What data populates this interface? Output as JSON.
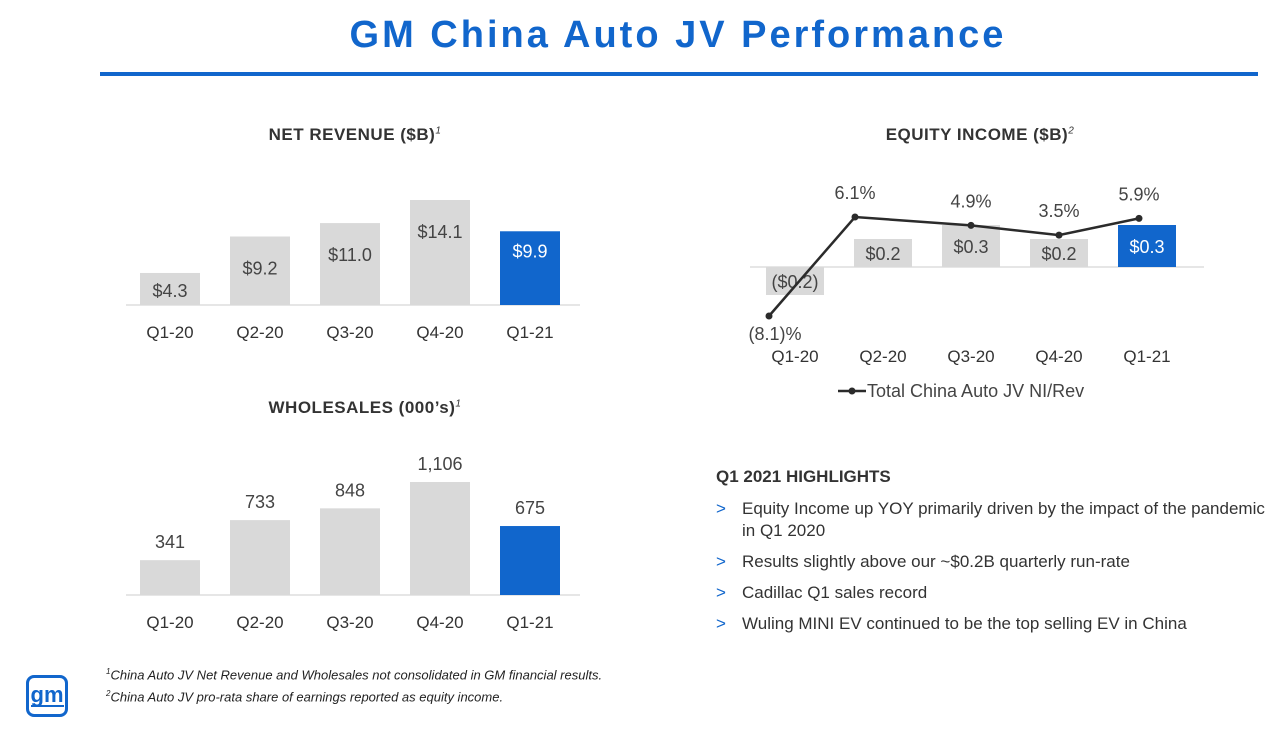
{
  "header": {
    "title": "GM China Auto JV Performance"
  },
  "colors": {
    "accent": "#1166cc",
    "bar_gray": "#d9d9d9",
    "line": "#2b2b2b"
  },
  "chart_data": [
    {
      "id": "net-revenue",
      "type": "bar",
      "title": "NET REVENUE ($B)",
      "title_note": "1",
      "categories": [
        "Q1-20",
        "Q2-20",
        "Q3-20",
        "Q4-20",
        "Q1-21"
      ],
      "values": [
        4.3,
        9.2,
        11.0,
        14.1,
        9.9
      ],
      "labels": [
        "$4.3",
        "$9.2",
        "$11.0",
        "$14.1",
        "$9.9"
      ],
      "highlight_index": 4,
      "ylim": [
        0,
        14.1
      ]
    },
    {
      "id": "wholesales",
      "type": "bar",
      "title": "WHOLESALES (000’s)",
      "title_note": "1",
      "categories": [
        "Q1-20",
        "Q2-20",
        "Q3-20",
        "Q4-20",
        "Q1-21"
      ],
      "values": [
        341,
        733,
        848,
        1106,
        675
      ],
      "labels": [
        "341",
        "733",
        "848",
        "1,106",
        "675"
      ],
      "highlight_index": 4,
      "ylim": [
        0,
        1106
      ]
    },
    {
      "id": "equity-income",
      "type": "bar+line",
      "title": "EQUITY INCOME ($B)",
      "title_note": "2",
      "categories": [
        "Q1-20",
        "Q2-20",
        "Q3-20",
        "Q4-20",
        "Q1-21"
      ],
      "bar_values": [
        -0.2,
        0.2,
        0.3,
        0.2,
        0.3
      ],
      "bar_labels": [
        "($0.2)",
        "$0.2",
        "$0.3",
        "$0.2",
        "$0.3"
      ],
      "line_values": [
        -8.1,
        6.1,
        4.9,
        3.5,
        5.9
      ],
      "line_labels": [
        "(8.1)%",
        "6.1%",
        "4.9%",
        "3.5%",
        "5.9%"
      ],
      "line_ylim": [
        -8.1,
        6.1
      ],
      "highlight_index": 4,
      "legend": "Total China Auto JV NI/Rev"
    }
  ],
  "highlights": {
    "title": "Q1 2021 HIGHLIGHTS",
    "items": [
      "Equity Income up YOY primarily driven by the impact of the pandemic in Q1 2020",
      "Results slightly above our ~$0.2B quarterly run-rate",
      "Cadillac Q1 sales record",
      "Wuling MINI EV continued to be the top selling EV in China"
    ]
  },
  "footnotes": {
    "note1_mark": "1",
    "note1": "China Auto JV Net Revenue and Wholesales not consolidated in GM financial results.",
    "note2_mark": "2",
    "note2": "China Auto JV pro-rata share of earnings reported as equity income."
  },
  "logo": {
    "text": "gm"
  }
}
